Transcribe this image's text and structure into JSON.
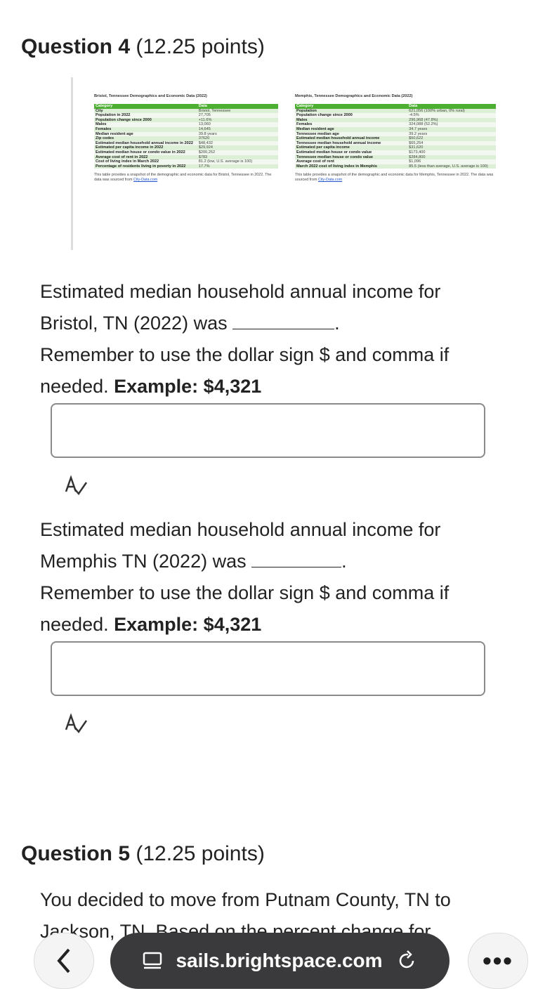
{
  "q4": {
    "title": "Question 4",
    "points": "(12.25 points)"
  },
  "bristol": {
    "title": "Bristol, Tennessee Demographics and Economic Data (2022)",
    "headers": [
      "Category",
      "Data"
    ],
    "rows": [
      [
        "City",
        "Bristol, Tennessee"
      ],
      [
        "Population in 2022",
        "27,705"
      ],
      [
        "Population change since 2000",
        "+11.6%"
      ],
      [
        "Males",
        "13,060"
      ],
      [
        "Females",
        "14,645"
      ],
      [
        "Median resident age",
        "39.8 years"
      ],
      [
        "Zip codes",
        "37620"
      ],
      [
        "Estimated median household annual income in 2022",
        "$48,432"
      ],
      [
        "Estimated per capita income in 2022",
        "$29,924"
      ],
      [
        "Estimated median house or condo value in 2022",
        "$200,252"
      ],
      [
        "Average cost of rent in 2022",
        "$783"
      ],
      [
        "Cost of living index in March 2022",
        "81.2 (low, U.S. average is 100)"
      ],
      [
        "Percentage of residents living in poverty in 2022",
        "17.7%"
      ]
    ],
    "caption": "This table provides a snapshot of the demographic and economic data for Bristol, Tennessee in 2022. The data was sourced from ",
    "link": "City-Data.com"
  },
  "memphis": {
    "title": "Memphis, Tennessee Demographics and Economic Data (2022)",
    "headers": [
      "Category",
      "Data"
    ],
    "rows": [
      [
        "Population",
        "621,056 (100% urban, 0% rural)"
      ],
      [
        "Population change since 2000",
        "-4.5%"
      ],
      [
        "Males",
        "296,968 (47.8%)"
      ],
      [
        "Females",
        "324,088 (52.2%)"
      ],
      [
        "Median resident age",
        "34.7 years"
      ],
      [
        "Tennessee median age",
        "39.2 years"
      ],
      [
        "Estimated median household annual income",
        "$50,622"
      ],
      [
        "Tennessee median household annual income",
        "$65,254"
      ],
      [
        "Estimated per capita income",
        "$31,620"
      ],
      [
        "Estimated median house or condo value",
        "$173,400"
      ],
      [
        "Tennessee median house or condo value",
        "$284,800"
      ],
      [
        "Average cost of rent",
        "$1,096"
      ],
      [
        "March 2022 cost of living index in Memphis",
        "85.5 (less than average, U.S. average is 100)"
      ]
    ],
    "caption": "This table provides a snapshot of the demographic and economic data for Memphis, Tennessee in 2022. The data was sourced from ",
    "link": "City-Data.com"
  },
  "blank1": {
    "line1": "Estimated median household annual income for",
    "line2": "Bristol, TN (2022) was",
    "after": ".",
    "line3": "Remember to use the dollar sign $ and comma if",
    "line4": "needed.",
    "example": "Example: $4,321",
    "value": ""
  },
  "blank2": {
    "line1": "Estimated median household annual income for",
    "line2": "Memphis TN (2022) was",
    "after": ".",
    "line3": "Remember to use the dollar sign $ and comma if",
    "line4": "needed.",
    "example": "Example: $4,321",
    "value": ""
  },
  "q5": {
    "title": "Question 5",
    "points": "(12.25 points)",
    "text1": "You decided to move from Putnam County, TN to",
    "text2": "Jackson, TN.  Based on the percent change for"
  },
  "browser": {
    "url": "sails.brightspace.com"
  }
}
